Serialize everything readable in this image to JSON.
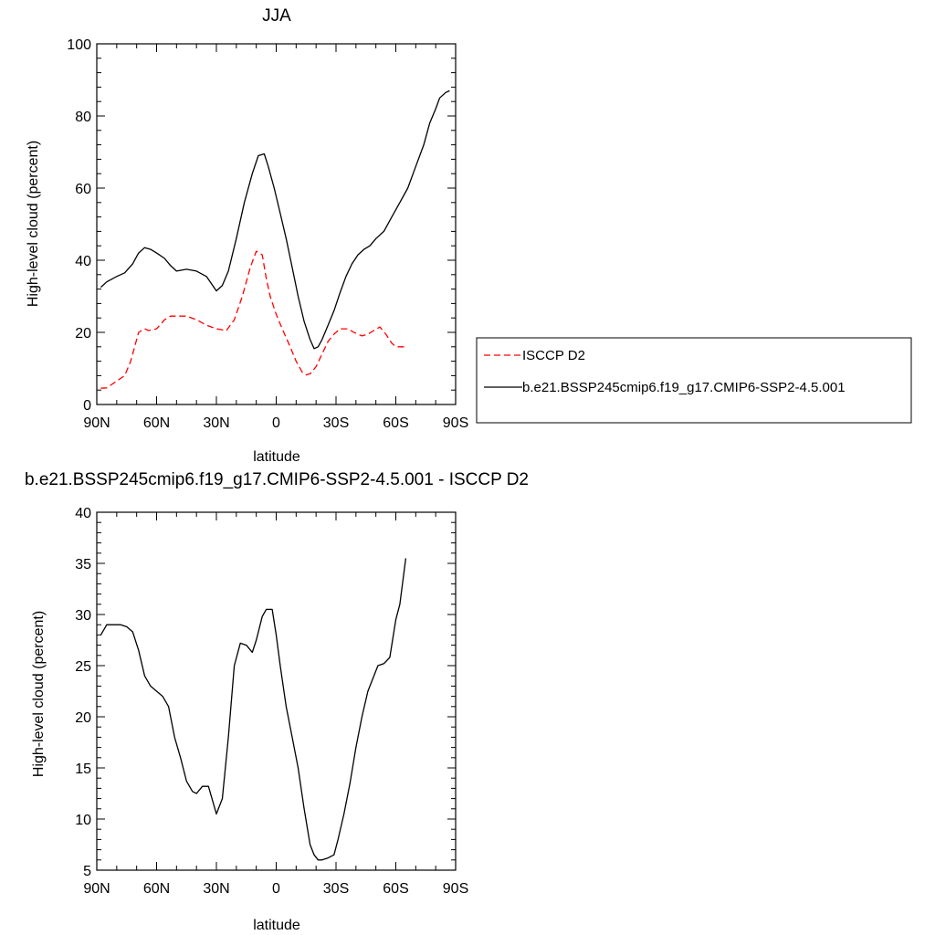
{
  "chart_data": [
    {
      "type": "line",
      "title": "JJA",
      "xlabel": "latitude",
      "ylabel": "High-level cloud (percent)",
      "xlim": [
        -90,
        90
      ],
      "ylim": [
        0,
        100
      ],
      "x_ticks": [
        -90,
        -60,
        -30,
        0,
        30,
        60,
        90
      ],
      "x_tick_labels": [
        "90N",
        "60N",
        "30N",
        "0",
        "30S",
        "60S",
        "90S"
      ],
      "y_ticks": [
        0,
        20,
        40,
        60,
        80,
        100
      ],
      "y_tick_labels": [
        "0",
        "20",
        "40",
        "60",
        "80",
        "100"
      ],
      "legend_position": "right",
      "series": [
        {
          "name": "ISCCP D2",
          "color": "#ff0000",
          "dash": "dashed",
          "x": [
            -88,
            -85,
            -80,
            -76,
            -73,
            -71,
            -69,
            -66,
            -64,
            -60,
            -56,
            -53,
            -50,
            -45,
            -40,
            -35,
            -30,
            -25,
            -21,
            -17,
            -13,
            -10,
            -7,
            -5,
            -3,
            0,
            3,
            7,
            10,
            13,
            15,
            17,
            20,
            23,
            26,
            29,
            32,
            36,
            39,
            43,
            46,
            49,
            52,
            55,
            58,
            60,
            62,
            65
          ],
          "y": [
            4.5,
            4.6,
            6.5,
            8,
            12,
            16,
            20,
            21,
            20.5,
            21,
            23.5,
            24.5,
            24.5,
            24.5,
            23.5,
            22,
            21,
            20.5,
            23.5,
            30,
            38,
            42.5,
            41.5,
            35,
            30,
            25,
            21,
            16,
            12,
            9,
            8.2,
            8.5,
            10.5,
            14,
            17.5,
            19.5,
            21,
            21,
            20,
            19,
            19.5,
            20.5,
            21.5,
            19.5,
            17,
            16,
            16,
            16
          ]
        },
        {
          "name": "b.e21.BSSP245cmip6.f19_g17.CMIP6-SSP2-4.5.001",
          "color": "#000000",
          "dash": "solid",
          "x": [
            -88,
            -85,
            -80,
            -76,
            -72,
            -69,
            -66,
            -63,
            -60,
            -56,
            -53,
            -50,
            -45,
            -40,
            -35,
            -30,
            -27,
            -24,
            -20,
            -16,
            -12,
            -9,
            -6,
            -4,
            -1,
            2,
            5,
            8,
            11,
            14,
            17,
            19,
            21,
            23,
            26,
            29,
            32,
            35,
            38,
            41,
            44,
            47,
            50,
            54,
            58,
            62,
            66,
            70,
            74,
            77,
            80,
            82,
            85,
            87
          ],
          "y": [
            32.5,
            34,
            35.5,
            36.5,
            39,
            42,
            43.5,
            43,
            42,
            40.5,
            38.5,
            37,
            37.5,
            37,
            35.5,
            31.5,
            33,
            37,
            46,
            56,
            64,
            69,
            69.5,
            66,
            60,
            53,
            46,
            38,
            30,
            23,
            18,
            15.5,
            16,
            18,
            22,
            26,
            31,
            35.5,
            39,
            41.5,
            43,
            44,
            46,
            48,
            52,
            56,
            60,
            66,
            72,
            78,
            82,
            85,
            86.5,
            87
          ]
        }
      ]
    },
    {
      "type": "line",
      "title": "b.e21.BSSP245cmip6.f19_g17.CMIP6-SSP2-4.5.001 - ISCCP D2",
      "xlabel": "latitude",
      "ylabel": "High-level cloud (percent)",
      "xlim": [
        -90,
        90
      ],
      "ylim": [
        5,
        40
      ],
      "x_ticks": [
        -90,
        -60,
        -30,
        0,
        30,
        60,
        90
      ],
      "x_tick_labels": [
        "90N",
        "60N",
        "30N",
        "0",
        "30S",
        "60S",
        "90S"
      ],
      "y_ticks": [
        5,
        10,
        15,
        20,
        25,
        30,
        35,
        40
      ],
      "y_tick_labels": [
        "5",
        "10",
        "15",
        "20",
        "25",
        "30",
        "35",
        "40"
      ],
      "series": [
        {
          "color": "#000000",
          "dash": "solid",
          "x": [
            -88,
            -85,
            -81,
            -78,
            -75,
            -72,
            -69,
            -66,
            -63,
            -60,
            -57,
            -54,
            -51,
            -48,
            -45,
            -42,
            -40,
            -37,
            -34,
            -30,
            -27,
            -24,
            -21,
            -18,
            -15,
            -12,
            -10,
            -7,
            -5,
            -2,
            0,
            2,
            5,
            8,
            11,
            14,
            17,
            19,
            21,
            23,
            26,
            29,
            31,
            34,
            37,
            40,
            43,
            46,
            49,
            51,
            54,
            57,
            60,
            62,
            65
          ],
          "y": [
            28,
            29,
            29,
            29,
            28.8,
            28.3,
            26.5,
            24,
            23,
            22.5,
            22,
            21,
            18,
            16,
            13.7,
            12.7,
            12.5,
            13.2,
            13.2,
            10.5,
            12,
            18,
            25,
            27.2,
            27,
            26.3,
            27.5,
            29.8,
            30.5,
            30.5,
            28,
            25,
            21,
            18,
            15,
            11,
            7.5,
            6.5,
            6,
            6,
            6.2,
            6.5,
            8,
            10.5,
            13.5,
            17,
            20,
            22.5,
            24,
            25,
            25.2,
            25.8,
            29.5,
            31,
            35.5
          ]
        }
      ]
    }
  ]
}
